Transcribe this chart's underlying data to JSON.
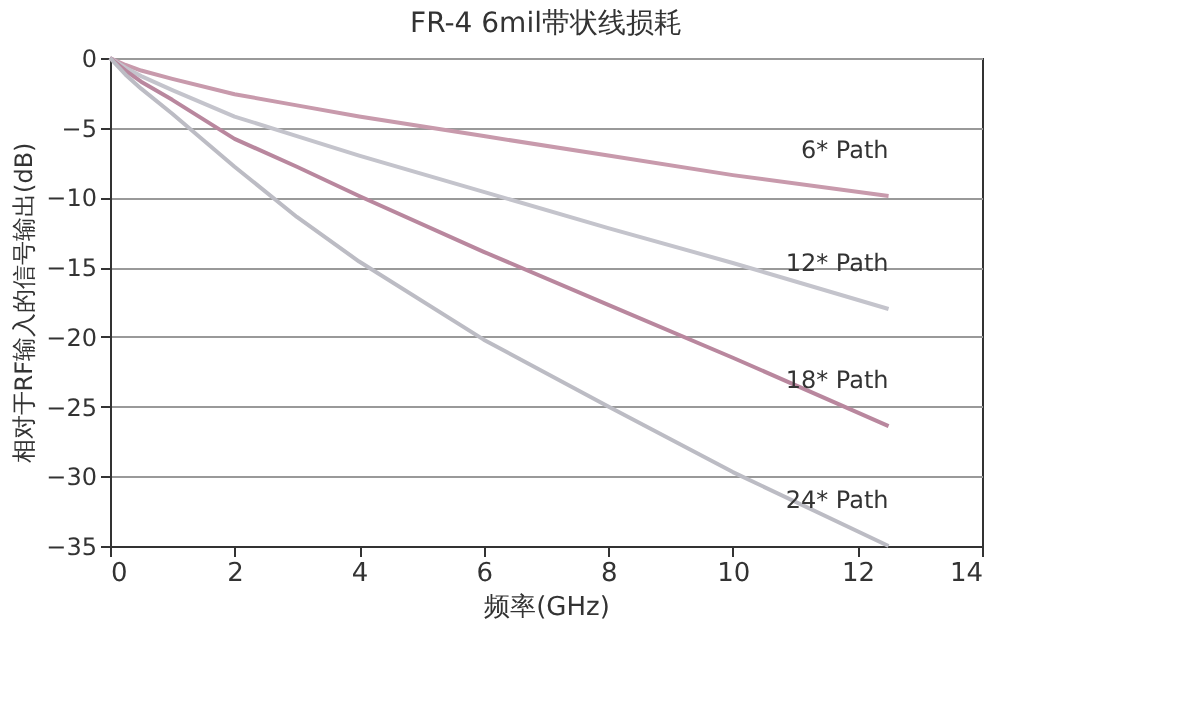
{
  "chart_data": {
    "type": "line",
    "title": "FR-4 6mil带状线损耗",
    "xlabel": "频率(GHz)",
    "ylabel": "相对于RF输入的信号输出(dB)",
    "x": [
      0,
      0.25,
      0.5,
      1,
      2,
      3,
      4,
      6,
      8,
      10,
      12.5
    ],
    "series": [
      {
        "name": "6* Path",
        "color": "#c89aac",
        "values": [
          0,
          -0.5,
          -0.9,
          -1.5,
          -2.6,
          -3.4,
          -4.2,
          -5.6,
          -7.0,
          -8.4,
          -9.9
        ]
      },
      {
        "name": "12* Path",
        "color": "#c4c4cc",
        "values": [
          0,
          -0.7,
          -1.3,
          -2.3,
          -4.2,
          -5.6,
          -7.0,
          -9.6,
          -12.2,
          -14.7,
          -18
        ]
      },
      {
        "name": "18* Path",
        "color": "#b9879e",
        "values": [
          0,
          -0.9,
          -1.7,
          -3.0,
          -5.8,
          -7.8,
          -9.9,
          -13.9,
          -17.7,
          -21.5,
          -26.4
        ]
      },
      {
        "name": "24* Path",
        "color": "#bcbcc4",
        "values": [
          0,
          -1.2,
          -2.2,
          -4.0,
          -7.8,
          -11.4,
          -14.6,
          -20.2,
          -25.0,
          -29.7,
          -35
        ]
      }
    ],
    "xlim": [
      0,
      14
    ],
    "xticks": [
      0,
      2,
      4,
      6,
      8,
      10,
      12,
      14
    ],
    "ylim": [
      -35,
      0
    ],
    "yticks": [
      0,
      -5,
      -10,
      -15,
      -20,
      -25,
      -30,
      -35
    ],
    "grid": "y",
    "legend": false,
    "marker": "none",
    "line_style": "solid"
  }
}
